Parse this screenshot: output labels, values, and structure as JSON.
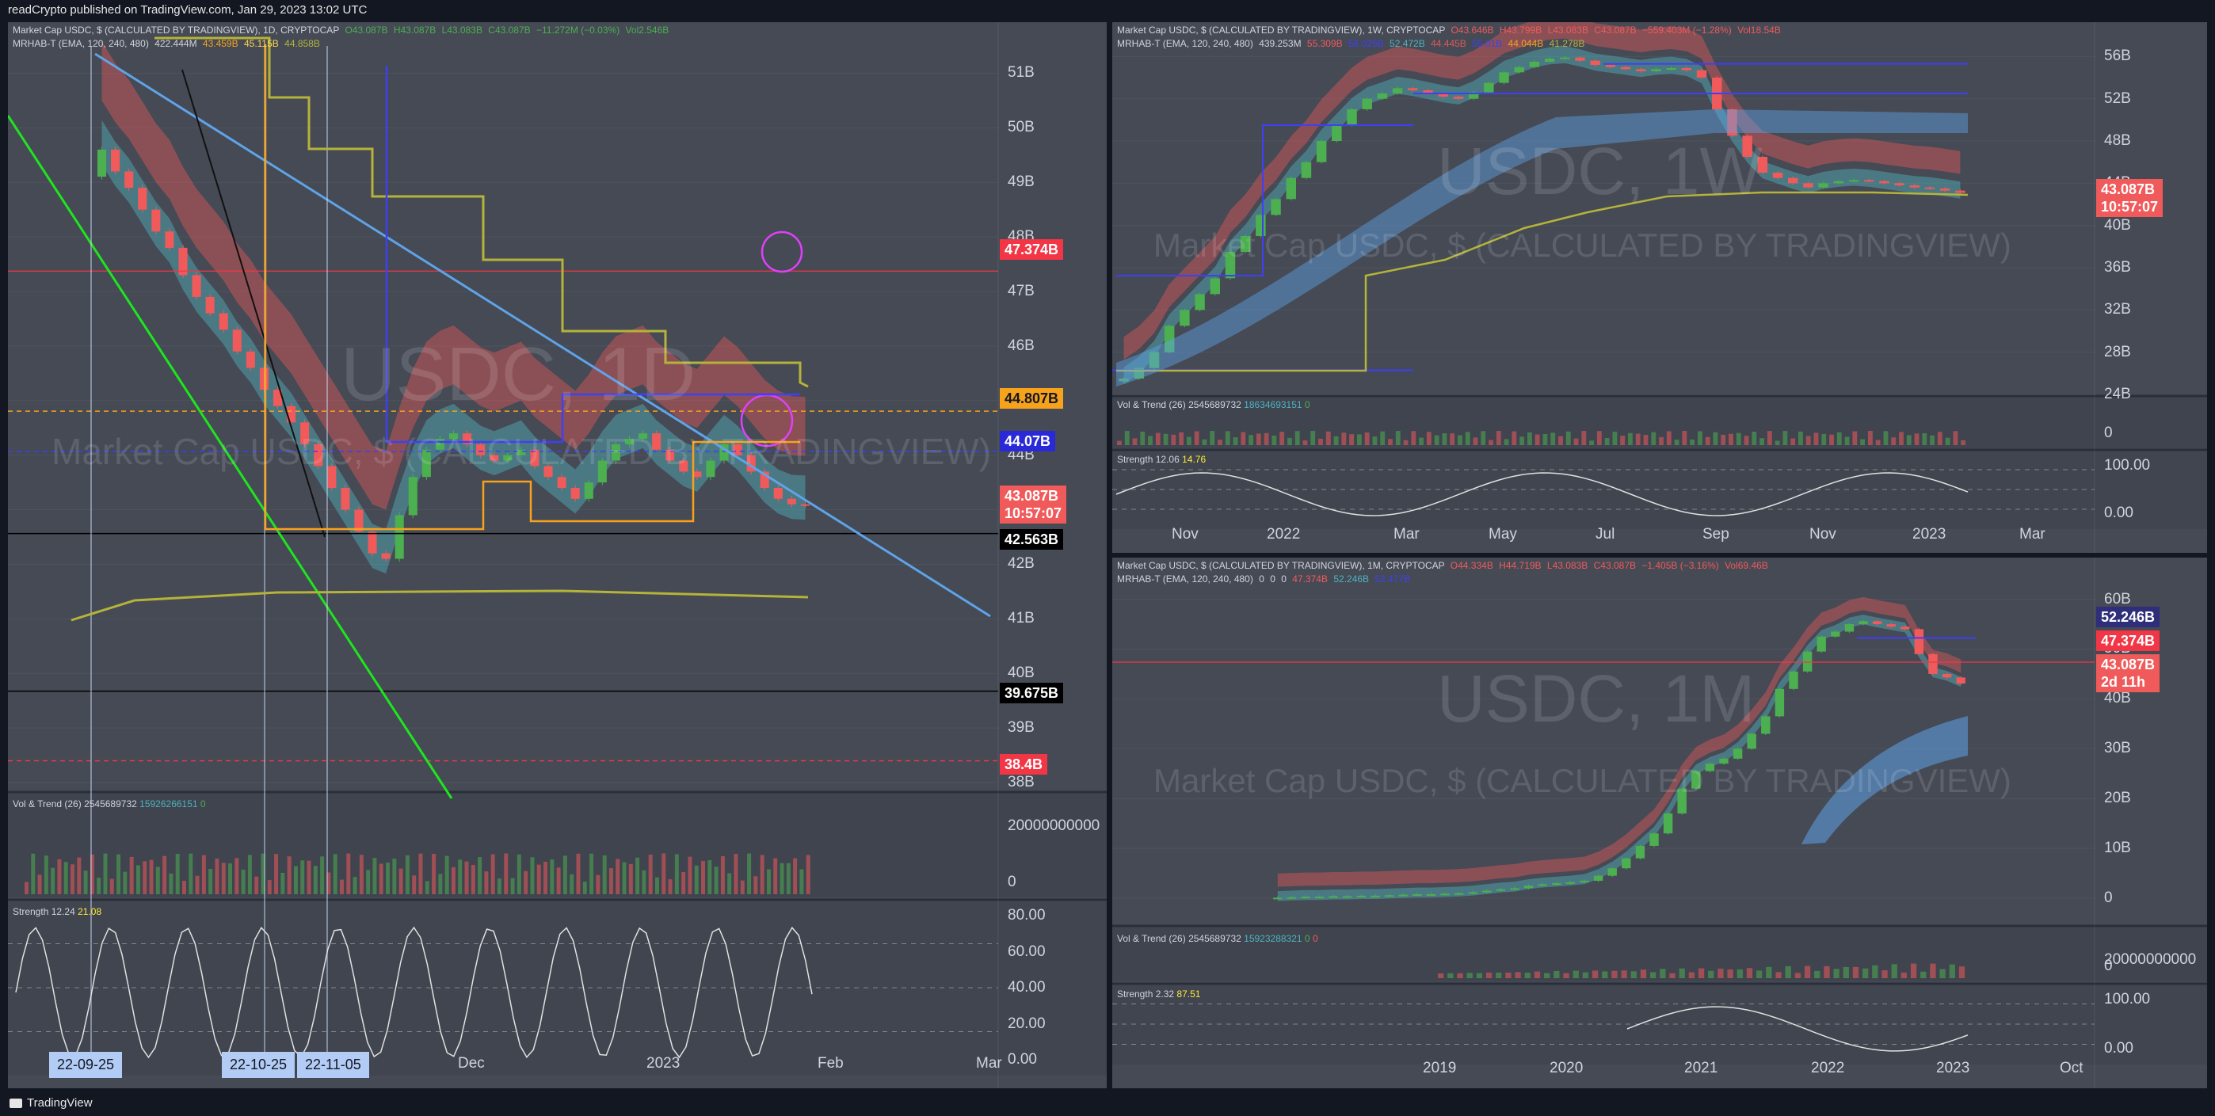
{
  "header": {
    "text": "readCrypto published on TradingView.com, Jan 29, 2023 13:02 UTC"
  },
  "footer": {
    "brand": "TradingView"
  },
  "colors": {
    "background": "#454a55",
    "up": "#4caf50",
    "down": "#f05a5a",
    "ribbon_teal": "#4fb3bf",
    "ribbon_red": "#e05858",
    "olive": "#b5b33a",
    "orange": "#f7a21b",
    "blue_line": "#3f3ff5",
    "green_line": "#1ee51e",
    "trend_blue": "#5fa3e8"
  },
  "panels": [
    {
      "id": "1d",
      "legend1": [
        "Market Cap USDC, $ (CALCULATED BY TRADINGVIEW), 1D, CRYPTOCAP",
        "O43.087B",
        "H43.087B",
        "L43.083B",
        "C43.087B",
        "−11.272M (−0.03%)",
        "Vol2.546B"
      ],
      "legend2": [
        "MRHAB-T (EMA, 120, 240, 480)",
        "422.444M",
        "43.459B",
        "45.115B",
        "44.858B"
      ],
      "watermark_symbol": "USDC, 1D",
      "watermark_desc": "Market Cap USDC, $ (CALCULATED BY TRADINGVIEW)",
      "price_ticks": [
        "51B",
        "50B",
        "49B",
        "48B",
        "47B",
        "46B",
        "45B",
        "44B",
        "43B",
        "42B",
        "41B",
        "40B",
        "39B",
        "38B"
      ],
      "price_tags": [
        {
          "text": "47.374B",
          "bg": "#f23645",
          "fg": "#ffffff"
        },
        {
          "text": "44.807B",
          "bg": "#f7a21b",
          "fg": "#131722"
        },
        {
          "text": "44.07B",
          "bg": "#2929d8",
          "fg": "#ffffff"
        },
        {
          "text": "43.087B",
          "sub": "10:57:07",
          "bg": "#f05a5a",
          "fg": "#ffffff"
        },
        {
          "text": "42.563B",
          "bg": "#000000",
          "fg": "#ffffff"
        },
        {
          "text": "39.675B",
          "bg": "#000000",
          "fg": "#ffffff"
        },
        {
          "text": "38.4B",
          "bg": "#f23645",
          "fg": "#ffffff"
        }
      ],
      "vol_title": [
        "Vol & Trend (26)",
        "2545689732",
        "15926266151",
        "0"
      ],
      "vol_ticks": [
        "20000000000",
        "0"
      ],
      "strength_title": [
        "Strength",
        "12.24",
        "21.08"
      ],
      "strength_ticks": [
        "80.00",
        "60.00",
        "40.00",
        "20.00",
        "0.00"
      ],
      "time_ticks": [
        "Dec",
        "2023",
        "Feb",
        "Mar"
      ],
      "date_tags": [
        "22-09-25",
        "22-10-25",
        "22-11-05"
      ]
    },
    {
      "id": "1w",
      "legend1": [
        "Market Cap USDC, $ (CALCULATED BY TRADINGVIEW), 1W, CRYPTOCAP",
        "O43.646B",
        "H43.799B",
        "L43.083B",
        "C43.087B",
        "−559.403M (−1.28%)",
        "Vol18.54B"
      ],
      "legend2": [
        "MRHAB-T (EMA, 120, 240, 480)",
        "439.253M",
        "55.309B",
        "56.025B",
        "52.472B",
        "44.445B",
        "55.01B",
        "44.044B",
        "41.278B"
      ],
      "watermark_symbol": "USDC, 1W",
      "watermark_desc": "Market Cap USDC, $ (CALCULATED BY TRADINGVIEW)",
      "price_ticks": [
        "56B",
        "52B",
        "48B",
        "44B",
        "40B",
        "36B",
        "32B",
        "28B",
        "24B"
      ],
      "price_tags": [
        {
          "text": "43.087B",
          "sub": "10:57:07",
          "bg": "#f05a5a",
          "fg": "#ffffff"
        }
      ],
      "vol_title": [
        "Vol & Trend (26)",
        "2545689732",
        "18634693151",
        "0"
      ],
      "vol_ticks": [
        "0"
      ],
      "strength_title": [
        "Strength",
        "12.06",
        "14.76"
      ],
      "strength_ticks": [
        "100.00",
        "0.00"
      ],
      "time_ticks": [
        "Nov",
        "2022",
        "Mar",
        "May",
        "Jul",
        "Sep",
        "Nov",
        "2023",
        "Mar"
      ]
    },
    {
      "id": "1m",
      "legend1": [
        "Market Cap USDC, $ (CALCULATED BY TRADINGVIEW), 1M, CRYPTOCAP",
        "O44.334B",
        "H44.719B",
        "L43.083B",
        "C43.087B",
        "−1.405B (−3.16%)",
        "Vol69.46B"
      ],
      "legend2": [
        "MRHAB-T (EMA, 120, 240, 480)",
        "0",
        "0",
        "0",
        "47.374B",
        "52.246B",
        "52.477B"
      ],
      "watermark_symbol": "USDC, 1M",
      "watermark_desc": "Market Cap USDC, $ (CALCULATED BY TRADINGVIEW)",
      "price_ticks": [
        "60B",
        "50B",
        "40B",
        "30B",
        "20B",
        "10B",
        "0"
      ],
      "price_tags": [
        {
          "text": "52.246B",
          "bg": "#2e2e7a",
          "fg": "#ffffff"
        },
        {
          "text": "47.374B",
          "bg": "#f23645",
          "fg": "#ffffff"
        },
        {
          "text": "43.087B",
          "sub": "2d 11h",
          "bg": "#f05a5a",
          "fg": "#ffffff"
        }
      ],
      "vol_title": [
        "Vol & Trend (26)",
        "2545689732",
        "15923288321",
        "0",
        "0"
      ],
      "vol_ticks": [
        "20000000000",
        "0"
      ],
      "strength_title": [
        "Strength",
        "2.32",
        "87.51"
      ],
      "strength_ticks": [
        "100.00",
        "0.00"
      ],
      "time_ticks": [
        "2019",
        "2020",
        "2021",
        "2022",
        "2023",
        "Oct"
      ]
    }
  ],
  "chart_data": [
    {
      "type": "candlestick",
      "timeframe": "1D",
      "title": "Market Cap USDC, $ (CALCULATED BY TRADINGVIEW), 1D, CRYPTOCAP",
      "ylim": [
        38,
        51.5
      ],
      "close_series_b": [
        49.6,
        49.2,
        48.9,
        48.5,
        48.1,
        47.8,
        47.3,
        46.9,
        46.6,
        46.3,
        45.9,
        45.6,
        45.2,
        44.9,
        44.6,
        44.2,
        43.8,
        43.4,
        43.0,
        42.6,
        42.2,
        42.1,
        42.9,
        43.6,
        44.1,
        44.3,
        44.4,
        44.2,
        44.0,
        43.9,
        44.0,
        44.1,
        43.8,
        43.6,
        43.4,
        43.2,
        43.5,
        43.9,
        44.2,
        44.3,
        44.4,
        44.1,
        43.9,
        43.7,
        43.6,
        43.9,
        44.2,
        44.0,
        43.7,
        43.4,
        43.2,
        43.1,
        43.087
      ],
      "levels_b": [
        47.374,
        44.807,
        44.07,
        43.087,
        42.563,
        39.675,
        38.4
      ]
    },
    {
      "type": "candlestick",
      "timeframe": "1W",
      "title": "Market Cap USDC, $ (CALCULATED BY TRADINGVIEW), 1W, CRYPTOCAP",
      "ylim": [
        24,
        57
      ],
      "close_series_b": [
        25.5,
        26.5,
        28.0,
        30.5,
        32.0,
        33.5,
        35.0,
        37.5,
        39.0,
        41.0,
        42.5,
        44.5,
        46.0,
        48.0,
        49.5,
        51.0,
        52.0,
        52.5,
        53.0,
        52.8,
        52.5,
        52.2,
        52.0,
        52.6,
        53.5,
        54.5,
        55.0,
        55.5,
        55.8,
        55.9,
        55.6,
        55.2,
        55.0,
        54.8,
        54.6,
        54.8,
        54.9,
        54.7,
        54.0,
        51.0,
        48.5,
        46.5,
        45.0,
        44.5,
        44.0,
        43.6,
        44.0,
        44.2,
        44.3,
        44.2,
        44.0,
        43.8,
        43.6,
        43.5,
        43.3,
        43.087
      ],
      "levels_b": [
        43.087
      ]
    },
    {
      "type": "candlestick",
      "timeframe": "1M",
      "title": "Market Cap USDC, $ (CALCULATED BY TRADINGVIEW), 1M, CRYPTOCAP",
      "ylim": [
        0,
        62
      ],
      "close_series_b": [
        0.1,
        0.2,
        0.3,
        0.3,
        0.4,
        0.4,
        0.5,
        0.5,
        0.6,
        0.7,
        0.8,
        0.8,
        0.9,
        1.0,
        1.2,
        1.5,
        1.8,
        2.0,
        2.5,
        2.8,
        3.0,
        3.2,
        3.5,
        4.5,
        6.0,
        8.0,
        10.5,
        13.0,
        17.0,
        22.0,
        25.5,
        27.0,
        28.0,
        30.0,
        33.0,
        36.5,
        42.0,
        45.5,
        49.5,
        52.5,
        53.5,
        55.0,
        55.6,
        55.0,
        54.5,
        54.0,
        49.0,
        45.0,
        44.3,
        43.087
      ],
      "levels_b": [
        52.246,
        47.374,
        43.087
      ]
    }
  ]
}
